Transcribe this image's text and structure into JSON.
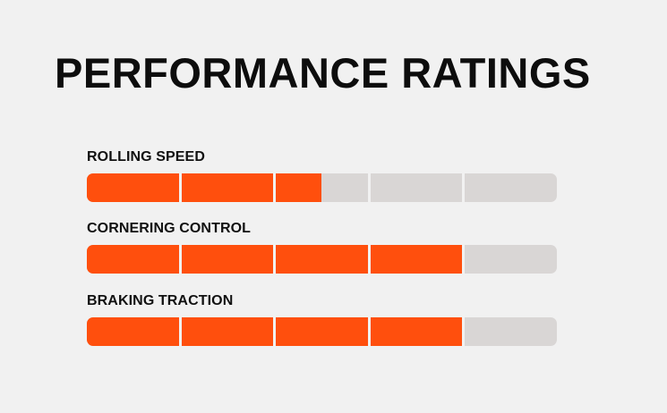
{
  "title": "PERFORMANCE RATINGS",
  "colors": {
    "fill": "#ff4f0d",
    "empty": "#d9d6d5",
    "background": "#f1f1f1",
    "text": "#0d0d0d"
  },
  "max_rating": 5,
  "ratings": [
    {
      "label": "ROLLING SPEED",
      "value": 2.5
    },
    {
      "label": "CORNERING CONTROL",
      "value": 4
    },
    {
      "label": "BRAKING TRACTION",
      "value": 4
    }
  ]
}
